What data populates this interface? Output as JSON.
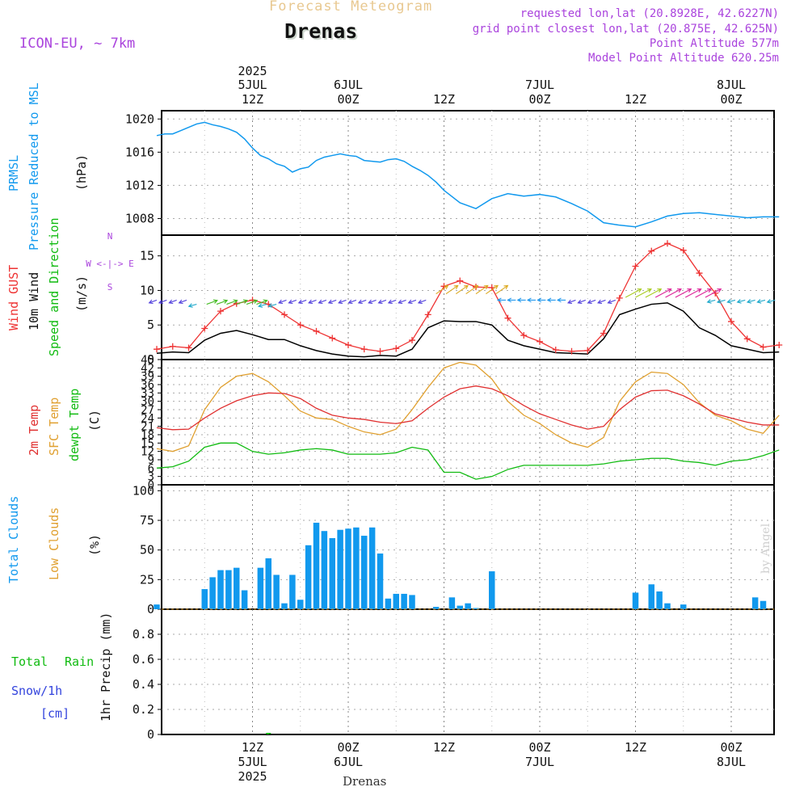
{
  "header": {
    "title_top": "Forecast Meteogram",
    "location": "Drenas",
    "model": "ICON-EU, ~ 7km",
    "requested": "requested lon,lat (20.8928E, 42.6227N)",
    "grid_point": "grid point closest lon,lat (20.875E, 42.625N)",
    "point_altitude": "Point Altitude 577m",
    "model_altitude": "Model Point Altitude 620.25m",
    "footer_location": "Drenas",
    "watermark": "by Angel"
  },
  "colors": {
    "pressure": "#1199ee",
    "gust": "#ee3333",
    "wind": "#000000",
    "t2m": "#e03030",
    "sfc": "#e0a030",
    "dewpt": "#11bb11",
    "cloud": "#1199ee",
    "low_cloud": "#e0a030",
    "precip": "#11bb11",
    "label_purple": "#aa44dd",
    "title_orange": "#e8c890"
  },
  "top_time_axis": [
    {
      "line1": "2025",
      "line2": "5JUL",
      "line3": "12Z"
    },
    {
      "line1": "",
      "line2": "6JUL",
      "line3": "00Z"
    },
    {
      "line1": "",
      "line2": "",
      "line3": "12Z"
    },
    {
      "line1": "",
      "line2": "7JUL",
      "line3": "00Z"
    },
    {
      "line1": "",
      "line2": "",
      "line3": "12Z"
    },
    {
      "line1": "",
      "line2": "8JUL",
      "line3": "00Z"
    }
  ],
  "bottom_time_axis": [
    {
      "line1": "12Z",
      "line2": "5JUL",
      "line3": "2025"
    },
    {
      "line1": "00Z",
      "line2": "6JUL",
      "line3": ""
    },
    {
      "line1": "12Z",
      "line2": "",
      "line3": ""
    },
    {
      "line1": "00Z",
      "line2": "7JUL",
      "line3": ""
    },
    {
      "line1": "12Z",
      "line2": "",
      "line3": ""
    },
    {
      "line1": "00Z",
      "line2": "8JUL",
      "line3": ""
    }
  ],
  "panel_labels": {
    "pressure": [
      "PRMSL",
      "Pressure Reduced to MSL",
      "(hPa)"
    ],
    "wind": [
      "Wind GUST",
      "10m Wind",
      "Speed and Direction",
      "(m/s)"
    ],
    "compass": [
      "N",
      "W <-|-> E",
      "S"
    ],
    "temp": [
      "2m Temp",
      "SFC Temp",
      "dewpt Temp",
      "(C)"
    ],
    "cloud": [
      "Total Clouds",
      "Low Clouds",
      "(%)"
    ],
    "precip": [
      "Total",
      "Rain",
      "Snow/1h",
      "[cm]",
      "1hr Precip (mm)"
    ]
  },
  "chart_data": [
    {
      "type": "line",
      "panel": "pressure",
      "x_unit": "hours from 2025-07-05 00Z",
      "ylim": [
        1006,
        1021
      ],
      "yticks": [
        "1008",
        "1012",
        "1016",
        "1020"
      ],
      "x": [
        0,
        1,
        2,
        3,
        4,
        5,
        6,
        7,
        8,
        9,
        10,
        11,
        12,
        13,
        14,
        15,
        16,
        17,
        18,
        19,
        20,
        21,
        22,
        23,
        24,
        25,
        26,
        27,
        28,
        29,
        30,
        31,
        32,
        33,
        34,
        35,
        36,
        38,
        40,
        42,
        44,
        46,
        48,
        50,
        52,
        54,
        56,
        58,
        60,
        62,
        64,
        66,
        68,
        70,
        72,
        74,
        76,
        78
      ],
      "series": [
        {
          "values": [
            1018.0,
            1018.2,
            1018.2,
            1018.6,
            1019.0,
            1019.4,
            1019.6,
            1019.3,
            1019.1,
            1018.8,
            1018.4,
            1017.6,
            1016.5,
            1015.6,
            1015.2,
            1014.6,
            1014.3,
            1013.6,
            1014.0,
            1014.2,
            1015.0,
            1015.4,
            1015.6,
            1015.8,
            1015.6,
            1015.5,
            1015.0,
            1014.9,
            1014.8,
            1015.1,
            1015.2,
            1014.9,
            1014.3,
            1013.8,
            1013.2,
            1012.4,
            1011.4,
            1009.9,
            1009.2,
            1010.4,
            1011.0,
            1010.7,
            1010.9,
            1010.6,
            1009.8,
            1008.9,
            1007.5,
            1007.2,
            1007.0,
            1007.6,
            1008.3,
            1008.6,
            1008.7,
            1008.5,
            1008.3,
            1008.1,
            1008.2,
            1008.2
          ]
        }
      ]
    },
    {
      "type": "line",
      "panel": "wind",
      "x_unit": "hours from 2025-07-05 00Z",
      "ylim": [
        0,
        18
      ],
      "yticks": [
        "0",
        "5",
        "10",
        "15"
      ],
      "x": [
        0,
        2,
        4,
        6,
        8,
        10,
        12,
        14,
        16,
        18,
        20,
        22,
        24,
        26,
        28,
        30,
        32,
        34,
        36,
        38,
        40,
        42,
        44,
        46,
        48,
        50,
        52,
        54,
        56,
        58,
        60,
        62,
        64,
        66,
        68,
        70,
        72,
        74,
        76,
        78
      ],
      "series": [
        {
          "name": "Wind GUST",
          "values": [
            1.5,
            1.9,
            1.7,
            4.5,
            7.0,
            8.1,
            8.6,
            8.0,
            6.5,
            5.0,
            4.1,
            3.1,
            2.1,
            1.5,
            1.2,
            1.6,
            2.8,
            6.5,
            10.6,
            11.4,
            10.5,
            10.4,
            6.0,
            3.5,
            2.6,
            1.4,
            1.2,
            1.3,
            3.8,
            8.9,
            13.5,
            15.7,
            16.8,
            15.8,
            12.5,
            9.6,
            5.5,
            3.0,
            1.8,
            2.1
          ]
        },
        {
          "name": "10m Wind",
          "values": [
            0.9,
            1.1,
            1.0,
            2.8,
            3.8,
            4.2,
            3.6,
            2.9,
            2.9,
            2.0,
            1.3,
            0.8,
            0.5,
            0.4,
            0.6,
            0.5,
            1.5,
            4.6,
            5.6,
            5.5,
            5.5,
            5.0,
            2.8,
            2.0,
            1.5,
            1.0,
            0.9,
            0.8,
            3.0,
            6.5,
            7.3,
            8.0,
            8.2,
            7.0,
            4.6,
            3.5,
            2.0,
            1.5,
            1.0,
            1.1
          ]
        }
      ]
    },
    {
      "type": "line",
      "panel": "temp",
      "x_unit": "hours from 2025-07-05 00Z",
      "ylim": [
        0,
        45
      ],
      "yticks": [
        "0",
        "3",
        "6",
        "9",
        "12",
        "15",
        "18",
        "21",
        "24",
        "27",
        "30",
        "33",
        "36",
        "39",
        "42",
        "45"
      ],
      "x": [
        0,
        2,
        4,
        6,
        8,
        10,
        12,
        14,
        16,
        18,
        20,
        22,
        24,
        26,
        28,
        30,
        32,
        34,
        36,
        38,
        40,
        42,
        44,
        46,
        48,
        50,
        52,
        54,
        56,
        58,
        60,
        62,
        64,
        66,
        68,
        70,
        72,
        74,
        76,
        78
      ],
      "series": [
        {
          "name": "2m Temp",
          "values": [
            20.5,
            19.8,
            20.0,
            24.0,
            27.5,
            30.2,
            32.0,
            33.0,
            32.8,
            31.0,
            27.5,
            25.0,
            24.0,
            23.5,
            22.5,
            22.0,
            23.0,
            27.5,
            31.5,
            34.5,
            35.5,
            34.5,
            32.0,
            28.5,
            25.5,
            23.5,
            21.5,
            20.0,
            21.0,
            27.0,
            31.5,
            33.8,
            34.0,
            32.0,
            29.0,
            25.5,
            24.0,
            22.5,
            21.5,
            21.5
          ]
        },
        {
          "name": "SFC Temp",
          "values": [
            13.0,
            12.0,
            14.0,
            27.0,
            35.0,
            39.0,
            40.0,
            37.0,
            32.0,
            26.5,
            24.0,
            23.5,
            21.0,
            19.0,
            18.0,
            20.0,
            27.0,
            35.0,
            42.0,
            44.0,
            43.0,
            38.0,
            30.0,
            25.0,
            22.0,
            18.0,
            15.0,
            13.5,
            17.0,
            30.0,
            37.0,
            40.5,
            40.0,
            36.0,
            29.5,
            25.0,
            23.0,
            20.0,
            18.5,
            25.0
          ]
        },
        {
          "name": "dewpt Temp",
          "values": [
            6.0,
            6.5,
            8.5,
            13.5,
            15.0,
            15.0,
            12.0,
            11.0,
            11.5,
            12.5,
            13.0,
            12.5,
            11.0,
            11.0,
            11.0,
            11.5,
            13.5,
            12.5,
            4.5,
            4.5,
            2.0,
            3.0,
            5.5,
            7.0,
            7.0,
            7.0,
            7.0,
            7.0,
            7.5,
            8.5,
            9.0,
            9.5,
            9.5,
            8.5,
            8.0,
            7.0,
            8.5,
            9.0,
            10.5,
            12.5
          ]
        }
      ]
    },
    {
      "type": "bar",
      "panel": "cloud",
      "x_unit": "hours from 2025-07-05 00Z",
      "ylim": [
        0,
        105
      ],
      "yticks": [
        "0",
        "25",
        "50",
        "75",
        "100"
      ],
      "x": [
        0,
        6,
        7,
        8,
        9,
        10,
        11,
        13,
        14,
        15,
        16,
        17,
        18,
        19,
        20,
        21,
        22,
        23,
        24,
        25,
        26,
        27,
        28,
        29,
        30,
        31,
        32,
        35,
        37,
        38,
        39,
        40,
        42,
        60,
        62,
        63,
        64,
        66,
        75,
        76,
        77
      ],
      "series": [
        {
          "name": "Total Clouds",
          "values": [
            4,
            17,
            27,
            33,
            33,
            35,
            16,
            35,
            43,
            29,
            5,
            29,
            8,
            54,
            73,
            66,
            60,
            67,
            68,
            69,
            62,
            69,
            47,
            9,
            13,
            13,
            12,
            2,
            10,
            3,
            5,
            1,
            32,
            14,
            21,
            15,
            5,
            4,
            10,
            7,
            0
          ]
        }
      ]
    },
    {
      "type": "bar",
      "panel": "precip",
      "x_unit": "hours from 2025-07-05 00Z",
      "ylim": [
        0,
        1.0
      ],
      "yticks": [
        "0",
        "0.2",
        "0.4",
        "0.6",
        "0.8"
      ],
      "x": [
        14
      ],
      "series": [
        {
          "name": "Total Rain",
          "values": [
            0.01
          ]
        }
      ]
    }
  ]
}
